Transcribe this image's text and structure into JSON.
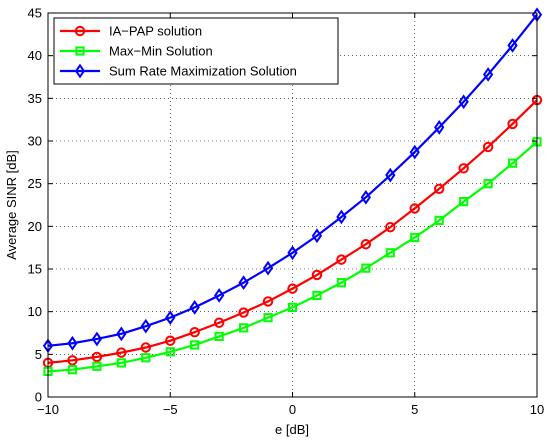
{
  "chart_data": {
    "type": "line",
    "xlabel": "e [dB]",
    "ylabel": "Average SINR [dB]",
    "xlim": [
      -10,
      10
    ],
    "ylim": [
      0,
      45
    ],
    "xticks": [
      -10,
      -5,
      0,
      5,
      10
    ],
    "yticks": [
      0,
      5,
      10,
      15,
      20,
      25,
      30,
      35,
      40,
      45
    ],
    "grid": "dotted",
    "legend_position": "top-left",
    "x": [
      -10,
      -9,
      -8,
      -7,
      -6,
      -5,
      -4,
      -3,
      -2,
      -1,
      0,
      1,
      2,
      3,
      4,
      5,
      6,
      7,
      8,
      9,
      10
    ],
    "series": [
      {
        "name": "IA−PAP solution",
        "color": "#ff0000",
        "marker": "circle",
        "values": [
          4.0,
          4.3,
          4.7,
          5.2,
          5.8,
          6.6,
          7.6,
          8.7,
          9.9,
          11.2,
          12.7,
          14.3,
          16.1,
          17.9,
          19.9,
          22.1,
          24.4,
          26.8,
          29.3,
          32.0,
          34.8
        ]
      },
      {
        "name": "Max−Min Solution",
        "color": "#00ff00",
        "marker": "square",
        "values": [
          3.0,
          3.2,
          3.6,
          4.0,
          4.6,
          5.3,
          6.1,
          7.1,
          8.1,
          9.3,
          10.5,
          11.9,
          13.4,
          15.1,
          16.9,
          18.7,
          20.7,
          22.9,
          25.0,
          27.4,
          29.9
        ]
      },
      {
        "name": "Sum Rate Maximization Solution",
        "color": "#0000ff",
        "marker": "diamond",
        "values": [
          6.0,
          6.3,
          6.8,
          7.4,
          8.3,
          9.3,
          10.5,
          11.9,
          13.4,
          15.1,
          16.9,
          18.9,
          21.1,
          23.4,
          26.0,
          28.7,
          31.6,
          34.6,
          37.8,
          41.2,
          44.8
        ]
      }
    ]
  }
}
